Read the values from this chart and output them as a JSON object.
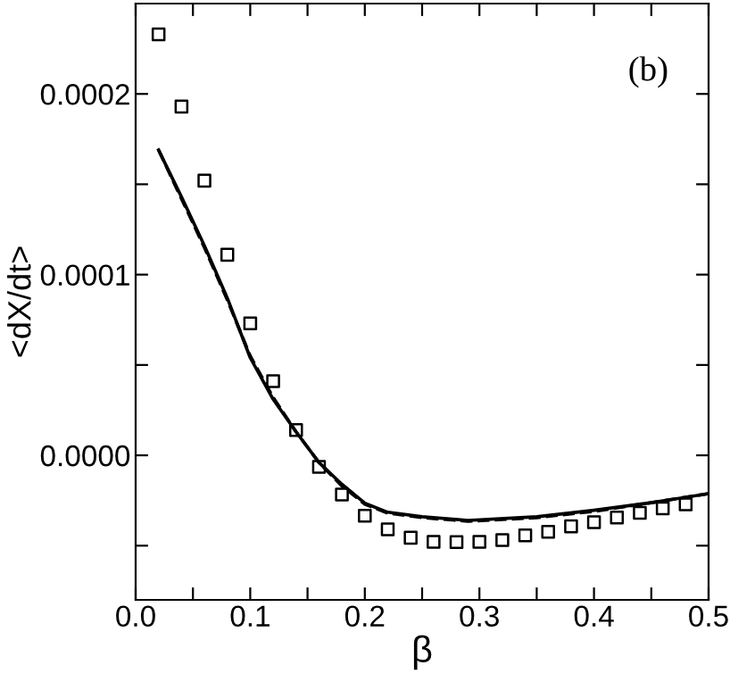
{
  "chart_data": {
    "type": "scatter",
    "xlabel": "β",
    "ylabel": "<dX/dt>",
    "annotations": [
      "(b)"
    ],
    "xlim": [
      0,
      0.5
    ],
    "ylim": [
      -8e-05,
      0.00025
    ],
    "xticks": [
      {
        "value": 0,
        "label": "0.0"
      },
      {
        "value": 0.05,
        "label": null
      },
      {
        "value": 0.1,
        "label": "0.1"
      },
      {
        "value": 0.15,
        "label": null
      },
      {
        "value": 0.2,
        "label": "0.2"
      },
      {
        "value": 0.25,
        "label": null
      },
      {
        "value": 0.3,
        "label": "0.3"
      },
      {
        "value": 0.35,
        "label": null
      },
      {
        "value": 0.4,
        "label": "0.4"
      },
      {
        "value": 0.45,
        "label": null
      },
      {
        "value": 0.5,
        "label": "0.5"
      }
    ],
    "yticks": [
      {
        "value": -5e-05,
        "label": null
      },
      {
        "value": 0,
        "label": "0.0000"
      },
      {
        "value": 5e-05,
        "label": null
      },
      {
        "value": 0.0001,
        "label": "0.0001"
      },
      {
        "value": 0.00015,
        "label": null
      },
      {
        "value": 0.0002,
        "label": "0.0002"
      }
    ],
    "grid": false,
    "legend": false,
    "series": [
      {
        "marker": "square",
        "color": "#000000",
        "x": [
          0.02,
          0.04,
          0.06,
          0.08,
          0.1,
          0.12,
          0.14,
          0.16,
          0.18,
          0.2,
          0.22,
          0.24,
          0.26,
          0.28,
          0.3,
          0.32,
          0.34,
          0.36,
          0.38,
          0.4,
          0.42,
          0.44,
          0.46,
          0.48
        ],
        "values": [
          0.000233,
          0.000193,
          0.000152,
          0.000111,
          7.3e-05,
          4.1e-05,
          1.4e-05,
          -6.4e-06,
          -2.17e-05,
          -3.34e-05,
          -4.1e-05,
          -4.56e-05,
          -4.79e-05,
          -4.8e-05,
          -4.79e-05,
          -4.69e-05,
          -4.43e-05,
          -4.23e-05,
          -3.93e-05,
          -3.7e-05,
          -3.44e-05,
          -3.18e-05,
          -2.94e-05,
          -2.71e-05
        ]
      },
      {
        "type": "line",
        "line_style": "dashed",
        "color": "#000000",
        "x": [
          0.02,
          0.04,
          0.06,
          0.08,
          0.1,
          0.12,
          0.14,
          0.16,
          0.18,
          0.2,
          0.22,
          0.25,
          0.29,
          0.35,
          0.4,
          0.45,
          0.5
        ],
        "values": [
          0.000169,
          0.000142,
          0.000115,
          8.6e-05,
          5.5e-05,
          3.2e-05,
          1.3e-05,
          -4e-06,
          -1.7e-05,
          -2.7e-05,
          -3.2e-05,
          -3.45e-05,
          -3.65e-05,
          -3.45e-05,
          -3.1e-05,
          -2.62e-05,
          -2.12e-05
        ]
      },
      {
        "type": "line",
        "line_style": "solid",
        "color": "#000000",
        "x": [
          0.02,
          0.04,
          0.06,
          0.08,
          0.1,
          0.12,
          0.14,
          0.16,
          0.18,
          0.2,
          0.22,
          0.25,
          0.29,
          0.35,
          0.4,
          0.45,
          0.5
        ],
        "values": [
          0.000169,
          0.000143,
          0.000116,
          8.7e-05,
          5.4e-05,
          3.1e-05,
          1.3e-05,
          -4e-06,
          -1.6e-05,
          -2.65e-05,
          -3.15e-05,
          -3.4e-05,
          -3.6e-05,
          -3.4e-05,
          -3.04e-05,
          -2.62e-05,
          -2.12e-05
        ]
      }
    ]
  }
}
